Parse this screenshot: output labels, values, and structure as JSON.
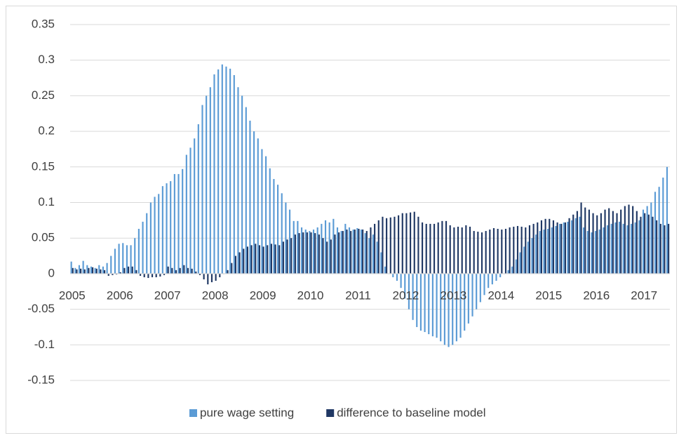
{
  "chart_data": {
    "type": "bar",
    "categories": [
      "2005",
      null,
      null,
      null,
      null,
      null,
      null,
      null,
      null,
      null,
      null,
      null,
      "2006",
      null,
      null,
      null,
      null,
      null,
      null,
      null,
      null,
      null,
      null,
      null,
      "2007",
      null,
      null,
      null,
      null,
      null,
      null,
      null,
      null,
      null,
      null,
      null,
      "2008",
      null,
      null,
      null,
      null,
      null,
      null,
      null,
      null,
      null,
      null,
      null,
      "2009",
      null,
      null,
      null,
      null,
      null,
      null,
      null,
      null,
      null,
      null,
      null,
      "2010",
      null,
      null,
      null,
      null,
      null,
      null,
      null,
      null,
      null,
      null,
      null,
      "2011",
      null,
      null,
      null,
      null,
      null,
      null,
      null,
      null,
      null,
      null,
      null,
      "2012",
      null,
      null,
      null,
      null,
      null,
      null,
      null,
      null,
      null,
      null,
      null,
      "2013",
      null,
      null,
      null,
      null,
      null,
      null,
      null,
      null,
      null,
      null,
      null,
      "2014",
      null,
      null,
      null,
      null,
      null,
      null,
      null,
      null,
      null,
      null,
      null,
      "2015",
      null,
      null,
      null,
      null,
      null,
      null,
      null,
      null,
      null,
      null,
      null,
      "2016",
      null,
      null,
      null,
      null,
      null,
      null,
      null,
      null,
      null,
      null,
      null,
      "2017",
      null,
      null,
      null,
      null,
      null,
      null
    ],
    "series": [
      {
        "name": "pure wage setting",
        "color": "#5b9bd5",
        "values": [
          0.017,
          0.008,
          0.012,
          0.018,
          0.012,
          0.01,
          0.008,
          0.012,
          0.01,
          0.015,
          0.025,
          0.035,
          0.042,
          0.043,
          0.04,
          0.04,
          0.05,
          0.063,
          0.073,
          0.085,
          0.1,
          0.108,
          0.112,
          0.123,
          0.127,
          0.13,
          0.14,
          0.14,
          0.147,
          0.167,
          0.177,
          0.19,
          0.21,
          0.237,
          0.25,
          0.262,
          0.28,
          0.287,
          0.294,
          0.291,
          0.288,
          0.279,
          0.262,
          0.25,
          0.234,
          0.215,
          0.2,
          0.19,
          0.175,
          0.165,
          0.148,
          0.133,
          0.125,
          0.113,
          0.1,
          0.09,
          0.074,
          0.074,
          0.065,
          0.062,
          0.06,
          0.062,
          0.065,
          0.07,
          0.075,
          0.072,
          0.077,
          0.065,
          0.06,
          0.07,
          0.065,
          0.062,
          0.064,
          0.062,
          0.057,
          0.05,
          0.055,
          0.045,
          0.03,
          0.01,
          0,
          -0.005,
          -0.01,
          -0.02,
          -0.035,
          -0.05,
          -0.065,
          -0.075,
          -0.08,
          -0.082,
          -0.085,
          -0.088,
          -0.09,
          -0.095,
          -0.1,
          -0.103,
          -0.1,
          -0.095,
          -0.09,
          -0.08,
          -0.07,
          -0.06,
          -0.05,
          -0.04,
          -0.03,
          -0.02,
          -0.015,
          -0.01,
          -0.005,
          0,
          0.005,
          0.01,
          0.02,
          0.03,
          0.038,
          0.045,
          0.05,
          0.055,
          0.06,
          0.062,
          0.063,
          0.065,
          0.067,
          0.07,
          0.072,
          0.073,
          0.075,
          0.078,
          0.08,
          0.065,
          0.06,
          0.058,
          0.06,
          0.062,
          0.065,
          0.068,
          0.07,
          0.072,
          0.073,
          0.07,
          0.068,
          0.07,
          0.072,
          0.075,
          0.09,
          0.095,
          0.1,
          0.115,
          0.122,
          0.135,
          0.15
        ]
      },
      {
        "name": "difference to baseline model",
        "color": "#203864",
        "values": [
          0.008,
          0.006,
          0.007,
          0.006,
          0.008,
          0.009,
          0.007,
          0.006,
          0.005,
          -0.003,
          -0.002,
          -0.001,
          0.002,
          0.008,
          0.01,
          0.01,
          0.005,
          -0.003,
          -0.005,
          -0.006,
          -0.005,
          -0.005,
          -0.004,
          -0.002,
          0.01,
          0.008,
          0.005,
          0.008,
          0.012,
          0.008,
          0.007,
          0.003,
          -0.002,
          -0.008,
          -0.015,
          -0.012,
          -0.01,
          -0.005,
          0,
          0.005,
          0.015,
          0.025,
          0.03,
          0.035,
          0.038,
          0.04,
          0.042,
          0.04,
          0.038,
          0.04,
          0.042,
          0.041,
          0.04,
          0.045,
          0.048,
          0.05,
          0.055,
          0.057,
          0.058,
          0.058,
          0.058,
          0.057,
          0.055,
          0.05,
          0.045,
          0.048,
          0.055,
          0.058,
          0.06,
          0.062,
          0.06,
          0.062,
          0.063,
          0.062,
          0.06,
          0.065,
          0.07,
          0.075,
          0.08,
          0.078,
          0.079,
          0.08,
          0.082,
          0.085,
          0.085,
          0.086,
          0.087,
          0.08,
          0.072,
          0.07,
          0.07,
          0.07,
          0.072,
          0.074,
          0.074,
          0.068,
          0.065,
          0.066,
          0.065,
          0.068,
          0.066,
          0.06,
          0.059,
          0.058,
          0.06,
          0.062,
          0.064,
          0.063,
          0.062,
          0.063,
          0.065,
          0.066,
          0.067,
          0.066,
          0.065,
          0.068,
          0.07,
          0.072,
          0.075,
          0.077,
          0.077,
          0.075,
          0.072,
          0.07,
          0.072,
          0.078,
          0.083,
          0.088,
          0.1,
          0.093,
          0.09,
          0.085,
          0.082,
          0.085,
          0.09,
          0.092,
          0.088,
          0.085,
          0.09,
          0.095,
          0.097,
          0.095,
          0.088,
          0.08,
          0.085,
          0.083,
          0.08,
          0.075,
          0.07,
          0.068,
          0.07
        ]
      }
    ],
    "ylim": [
      -0.15,
      0.35
    ],
    "yticks": [
      -0.15,
      -0.1,
      -0.05,
      0,
      0.05,
      0.1,
      0.15,
      0.2,
      0.25,
      0.3,
      0.35
    ],
    "grid": true,
    "legend": "bottom"
  }
}
